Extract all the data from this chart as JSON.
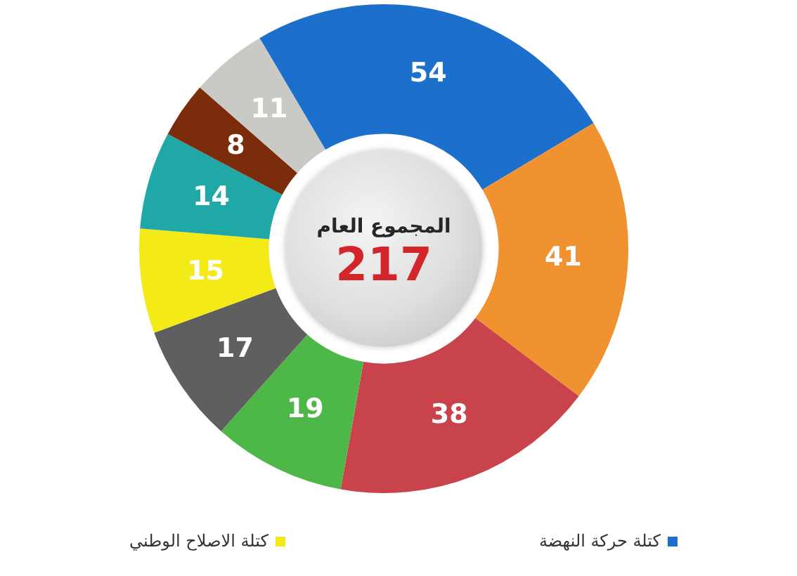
{
  "chart_data": {
    "type": "donut",
    "categories": [
      "كتلة حركة النهضة",
      null,
      null,
      null,
      null,
      "كتلة الاصلاح الوطني",
      null,
      null,
      null
    ],
    "values": [
      54,
      41,
      38,
      19,
      17,
      15,
      14,
      8,
      11
    ],
    "colors": [
      "#1c6fcb",
      "#ef922f",
      "#c8434b",
      "#4db848",
      "#5f5f5f",
      "#f4ea17",
      "#1fa8a6",
      "#7b2d0b",
      "#c9c9c5"
    ],
    "data_labels": true,
    "legend": "bottom",
    "annotations": [
      "المجموع العام",
      "217"
    ]
  }
}
